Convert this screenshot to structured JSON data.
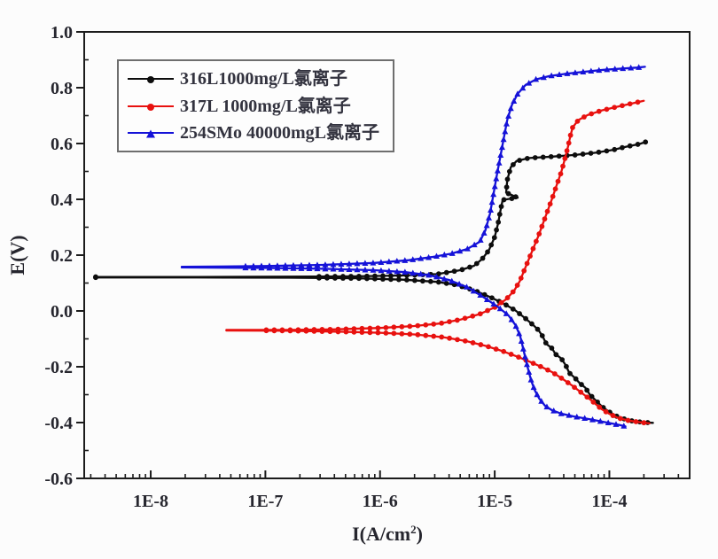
{
  "figure": {
    "background": "#fcfcfc",
    "frame_color": "#1c1c1c",
    "ylabel": "E(V)",
    "xlabel": {
      "prefix": "I(A/cm",
      "sup": "2",
      "suffix": ")"
    }
  },
  "chart_data": {
    "type": "line",
    "title": "",
    "xlabel": "I(A/cm2)",
    "ylabel": "E(V)",
    "x_scale": "log",
    "grid": false,
    "legend_position": "upper-left",
    "xlim_log10": [
      -8.58,
      -3.3
    ],
    "ylim": [
      -0.6,
      1.0
    ],
    "x_ticks": [
      {
        "log": -8,
        "label": "1E-8"
      },
      {
        "log": -7,
        "label": "1E-7"
      },
      {
        "log": -6,
        "label": "1E-6"
      },
      {
        "log": -5,
        "label": "1E-5"
      },
      {
        "log": -4,
        "label": "1E-4"
      }
    ],
    "y_ticks": [
      {
        "v": -0.6,
        "label": "-0.6"
      },
      {
        "v": -0.4,
        "label": "-0.4"
      },
      {
        "v": -0.2,
        "label": "-0.2"
      },
      {
        "v": 0.0,
        "label": "0.0"
      },
      {
        "v": 0.2,
        "label": "0.2"
      },
      {
        "v": 0.4,
        "label": "0.4"
      },
      {
        "v": 0.6,
        "label": "0.6"
      },
      {
        "v": 0.8,
        "label": "0.8"
      },
      {
        "v": 1.0,
        "label": "1.0"
      }
    ],
    "series": [
      {
        "name": "316L1000mg/L氯离子",
        "color": "#0d0d0d",
        "marker": "circle",
        "marker_min_log": -6.55,
        "tip_marker": true,
        "corrosion_potential_V": 0.12,
        "branches": {
          "anodic": [
            [
              -8.48,
              0.122
            ],
            [
              -7.6,
              0.122
            ],
            [
              -6.8,
              0.123
            ],
            [
              -6.2,
              0.124
            ],
            [
              -5.8,
              0.127
            ],
            [
              -5.5,
              0.132
            ],
            [
              -5.3,
              0.146
            ],
            [
              -5.18,
              0.162
            ],
            [
              -5.11,
              0.186
            ],
            [
              -5.05,
              0.218
            ],
            [
              -5.0,
              0.265
            ],
            [
              -4.97,
              0.315
            ],
            [
              -4.95,
              0.36
            ],
            [
              -4.93,
              0.398
            ],
            [
              -4.8,
              0.406
            ],
            [
              -4.9,
              0.424
            ],
            [
              -4.89,
              0.47
            ],
            [
              -4.86,
              0.515
            ],
            [
              -4.81,
              0.537
            ],
            [
              -4.7,
              0.548
            ],
            [
              -4.5,
              0.553
            ],
            [
              -4.3,
              0.559
            ],
            [
              -4.12,
              0.567
            ],
            [
              -3.97,
              0.577
            ],
            [
              -3.85,
              0.589
            ],
            [
              -3.74,
              0.598
            ],
            [
              -3.68,
              0.606
            ]
          ],
          "cathodic": [
            [
              -8.48,
              0.12
            ],
            [
              -7.6,
              0.12
            ],
            [
              -6.8,
              0.119
            ],
            [
              -6.2,
              0.117
            ],
            [
              -5.8,
              0.112
            ],
            [
              -5.5,
              0.104
            ],
            [
              -5.33,
              0.093
            ],
            [
              -5.18,
              0.074
            ],
            [
              -5.04,
              0.05
            ],
            [
              -4.92,
              0.026
            ],
            [
              -4.82,
              0.002
            ],
            [
              -4.74,
              -0.024
            ],
            [
              -4.66,
              -0.052
            ],
            [
              -4.62,
              -0.068
            ],
            [
              -4.58,
              -0.092
            ],
            [
              -4.55,
              -0.118
            ],
            [
              -4.5,
              -0.134
            ],
            [
              -4.47,
              -0.155
            ],
            [
              -4.42,
              -0.17
            ],
            [
              -4.38,
              -0.195
            ],
            [
              -4.35,
              -0.222
            ],
            [
              -4.3,
              -0.24
            ],
            [
              -4.26,
              -0.258
            ],
            [
              -4.21,
              -0.275
            ],
            [
              -4.17,
              -0.3
            ],
            [
              -4.12,
              -0.32
            ],
            [
              -4.06,
              -0.344
            ],
            [
              -4.0,
              -0.362
            ],
            [
              -3.92,
              -0.381
            ],
            [
              -3.82,
              -0.393
            ],
            [
              -3.71,
              -0.399
            ],
            [
              -3.62,
              -0.401
            ]
          ]
        }
      },
      {
        "name": "317L 1000mg/L氯离子",
        "color": "#e8110f",
        "marker": "circle",
        "marker_min_log": -7.0,
        "tip_marker": false,
        "corrosion_potential_V": -0.07,
        "branches": {
          "anodic": [
            [
              -7.34,
              -0.068
            ],
            [
              -6.8,
              -0.068
            ],
            [
              -6.4,
              -0.066
            ],
            [
              -6.0,
              -0.061
            ],
            [
              -5.7,
              -0.054
            ],
            [
              -5.48,
              -0.045
            ],
            [
              -5.3,
              -0.031
            ],
            [
              -5.13,
              -0.011
            ],
            [
              -5.0,
              0.013
            ],
            [
              -4.9,
              0.042
            ],
            [
              -4.83,
              0.073
            ],
            [
              -4.78,
              0.108
            ],
            [
              -4.74,
              0.148
            ],
            [
              -4.7,
              0.188
            ],
            [
              -4.66,
              0.228
            ],
            [
              -4.62,
              0.268
            ],
            [
              -4.58,
              0.312
            ],
            [
              -4.54,
              0.357
            ],
            [
              -4.5,
              0.402
            ],
            [
              -4.46,
              0.45
            ],
            [
              -4.42,
              0.497
            ],
            [
              -4.39,
              0.542
            ],
            [
              -4.36,
              0.59
            ],
            [
              -4.34,
              0.628
            ],
            [
              -4.32,
              0.658
            ],
            [
              -4.27,
              0.684
            ],
            [
              -4.19,
              0.702
            ],
            [
              -4.07,
              0.718
            ],
            [
              -3.94,
              0.731
            ],
            [
              -3.81,
              0.743
            ],
            [
              -3.7,
              0.753
            ]
          ],
          "cathodic": [
            [
              -7.34,
              -0.07
            ],
            [
              -6.8,
              -0.071
            ],
            [
              -6.4,
              -0.074
            ],
            [
              -6.0,
              -0.078
            ],
            [
              -5.7,
              -0.084
            ],
            [
              -5.45,
              -0.094
            ],
            [
              -5.25,
              -0.108
            ],
            [
              -5.08,
              -0.125
            ],
            [
              -4.93,
              -0.144
            ],
            [
              -4.8,
              -0.164
            ],
            [
              -4.69,
              -0.183
            ],
            [
              -4.59,
              -0.201
            ],
            [
              -4.5,
              -0.219
            ],
            [
              -4.41,
              -0.243
            ],
            [
              -4.32,
              -0.269
            ],
            [
              -4.23,
              -0.297
            ],
            [
              -4.15,
              -0.323
            ],
            [
              -4.07,
              -0.351
            ],
            [
              -4.0,
              -0.369
            ],
            [
              -3.92,
              -0.384
            ],
            [
              -3.83,
              -0.393
            ],
            [
              -3.73,
              -0.399
            ],
            [
              -3.65,
              -0.403
            ]
          ]
        }
      },
      {
        "name": "254SMo 40000mgL氯离子",
        "color": "#1512d8",
        "marker": "triangle",
        "marker_min_log": -7.2,
        "tip_marker": false,
        "corrosion_potential_V": 0.16,
        "branches": {
          "anodic": [
            [
              -7.73,
              0.158
            ],
            [
              -7.0,
              0.161
            ],
            [
              -6.5,
              0.165
            ],
            [
              -6.05,
              0.172
            ],
            [
              -5.75,
              0.182
            ],
            [
              -5.55,
              0.193
            ],
            [
              -5.38,
              0.205
            ],
            [
              -5.24,
              0.222
            ],
            [
              -5.13,
              0.248
            ],
            [
              -5.08,
              0.29
            ],
            [
              -5.04,
              0.35
            ],
            [
              -5.01,
              0.42
            ],
            [
              -4.98,
              0.49
            ],
            [
              -4.95,
              0.555
            ],
            [
              -4.92,
              0.62
            ],
            [
              -4.89,
              0.685
            ],
            [
              -4.85,
              0.738
            ],
            [
              -4.8,
              0.778
            ],
            [
              -4.73,
              0.81
            ],
            [
              -4.64,
              0.83
            ],
            [
              -4.52,
              0.842
            ],
            [
              -4.38,
              0.85
            ],
            [
              -4.22,
              0.857
            ],
            [
              -4.05,
              0.864
            ],
            [
              -3.88,
              0.869
            ],
            [
              -3.76,
              0.872
            ],
            [
              -3.69,
              0.875
            ]
          ],
          "cathodic": [
            [
              -7.73,
              0.156
            ],
            [
              -7.0,
              0.154
            ],
            [
              -6.5,
              0.151
            ],
            [
              -6.05,
              0.146
            ],
            [
              -5.78,
              0.139
            ],
            [
              -5.57,
              0.128
            ],
            [
              -5.4,
              0.111
            ],
            [
              -5.24,
              0.085
            ],
            [
              -5.1,
              0.05
            ],
            [
              -4.97,
              0.014
            ],
            [
              -4.88,
              -0.016
            ],
            [
              -4.82,
              -0.05
            ],
            [
              -4.78,
              -0.088
            ],
            [
              -4.76,
              -0.12
            ],
            [
              -4.74,
              -0.155
            ],
            [
              -4.72,
              -0.19
            ],
            [
              -4.7,
              -0.222
            ],
            [
              -4.68,
              -0.252
            ],
            [
              -4.65,
              -0.285
            ],
            [
              -4.61,
              -0.315
            ],
            [
              -4.56,
              -0.34
            ],
            [
              -4.5,
              -0.356
            ],
            [
              -4.42,
              -0.368
            ],
            [
              -4.31,
              -0.378
            ],
            [
              -4.17,
              -0.388
            ],
            [
              -4.02,
              -0.4
            ],
            [
              -3.91,
              -0.409
            ],
            [
              -3.86,
              -0.414
            ]
          ]
        }
      }
    ]
  }
}
